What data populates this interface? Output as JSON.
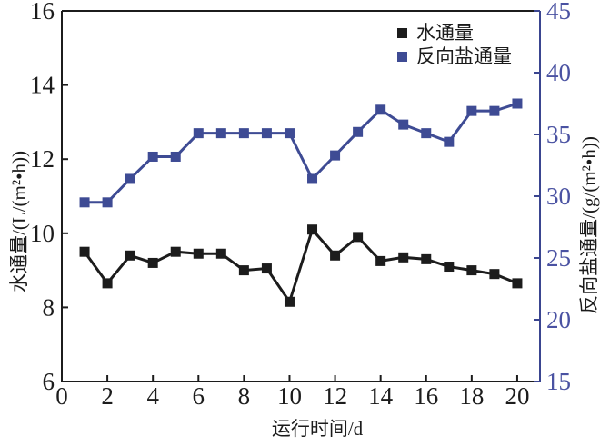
{
  "chart_data": {
    "type": "line",
    "x": [
      1,
      2,
      3,
      4,
      5,
      6,
      7,
      8,
      9,
      10,
      11,
      12,
      13,
      14,
      15,
      16,
      17,
      18,
      19,
      20
    ],
    "series": [
      {
        "name": "水通量",
        "axis": "left",
        "color": "#1c1c1c",
        "values": [
          9.5,
          8.65,
          9.4,
          9.2,
          9.5,
          9.45,
          9.45,
          9.0,
          9.05,
          8.15,
          10.1,
          9.4,
          9.9,
          9.25,
          9.35,
          9.3,
          9.1,
          9.0,
          8.9,
          8.65
        ]
      },
      {
        "name": "反向盐通量",
        "axis": "right",
        "color": "#3e4b94",
        "values": [
          29.5,
          29.5,
          31.4,
          33.2,
          33.2,
          35.1,
          35.1,
          35.1,
          35.1,
          35.1,
          31.4,
          33.3,
          35.2,
          37.0,
          35.8,
          35.1,
          34.4,
          36.9,
          36.9,
          37.5
        ]
      }
    ],
    "xlabel": "运行时间/d",
    "ylabel_left": "水通量/(L/(m²•h))",
    "ylabel_right": "反向盐通量/(g/(m²•h))",
    "xlim": [
      0,
      21
    ],
    "ylim_left": [
      6,
      16
    ],
    "ylim_right": [
      15,
      45
    ],
    "xticks": [
      0,
      2,
      4,
      6,
      8,
      10,
      12,
      14,
      16,
      18,
      20
    ],
    "yticks_left": [
      6,
      8,
      10,
      12,
      14,
      16
    ],
    "yticks_right": [
      15,
      20,
      25,
      30,
      35,
      40,
      45
    ],
    "grid": false,
    "legend_position": "top-right"
  },
  "colors": {
    "axis_black": "#1c1c1c",
    "right_spine": "#3a4590",
    "right_tick_label": "#4a52a2",
    "tick_label_black": "#1c1c1c"
  }
}
